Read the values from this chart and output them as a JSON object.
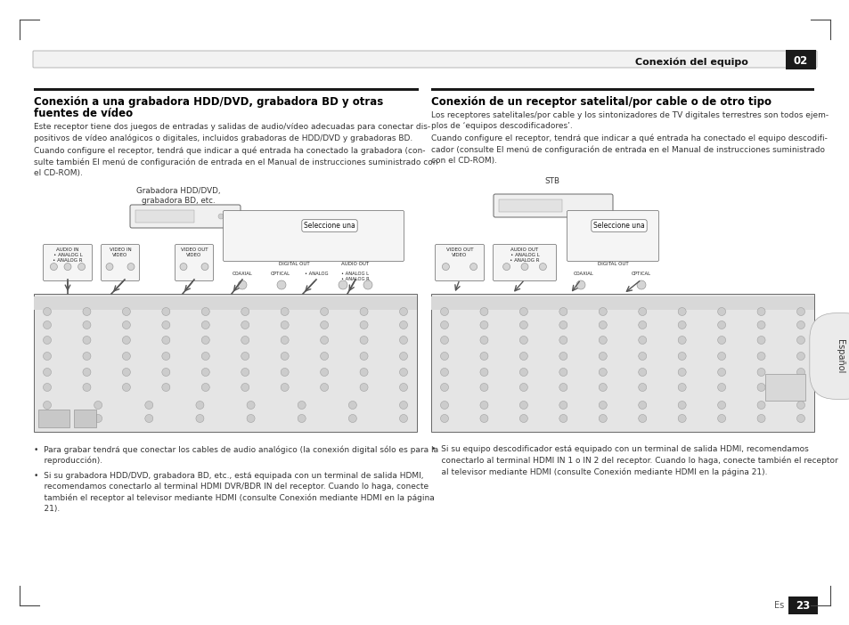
{
  "page_bg": "#ffffff",
  "header_text": "Conexión del equipo",
  "header_number": "02",
  "footer_left_text": "Es",
  "footer_number": "23",
  "sidebar_text": "Español",
  "left_title_line1": "Conexión a una grabadora HDD/DVD, grabadora BD y otras",
  "left_title_line2": "fuentes de vídeo",
  "left_body": "Este receptor tiene dos juegos de entradas y salidas de audio/vídeo adecuadas para conectar dis-\npositivos de vídeo analógicos o digitales, incluidos grabadoras de HDD/DVD y grabadoras BD.\nCuando configure el receptor, tendrá que indicar a qué entrada ha conectado la grabadora (con-\nsulte también El menú de configuración de entrada en el Manual de instrucciones suministrado con\nel CD-ROM).",
  "left_diagram_label": "Grabadora HDD/DVD,\ngrabadora BD, etc.",
  "left_select_label": "Seleccione una",
  "left_bullet1": "•  Para grabar tendrá que conectar los cables de audio analógico (la conexión digital sólo es para la\n    reproducción).",
  "left_bullet2": "•  Si su grabadora HDD/DVD, grabadora BD, etc., está equipada con un terminal de salida HDMI,\n    recomendamos conectarlo al terminal HDMI DVR/BDR IN del receptor. Cuando lo haga, conecte\n    también el receptor al televisor mediante HDMI (consulte Conexión mediante HDMI en la página\n    21).",
  "right_title": "Conexión de un receptor satelital/por cable o de otro tipo",
  "right_body": "Los receptores satelitales/por cable y los sintonizadores de TV digitales terrestres son todos ejem-\nplos de ‘equipos descodificadores’.\nCuando configure el receptor, tendrá que indicar a qué entrada ha conectado el equipo descodifi-\ncador (consulte El menú de configuración de entrada en el Manual de instrucciones suministrado\ncon el CD-ROM).",
  "right_stb_label": "STB",
  "right_select_label": "Seleccione una",
  "right_bullet1": "•  Si su equipo descodificador está equipado con un terminal de salida HDMI, recomendamos\n    conectarlo al terminal HDMI IN 1 o IN 2 del receptor. Cuando lo haga, conecte también el receptor\n    al televisor mediante HDMI (consulte Conexión mediante HDMI en la página 21)."
}
